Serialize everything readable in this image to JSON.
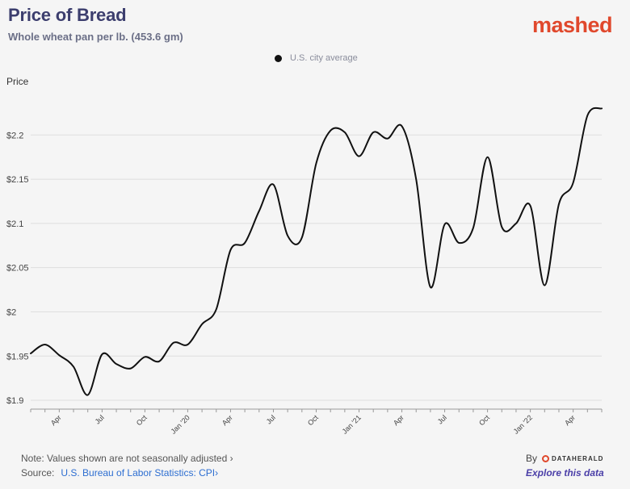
{
  "header": {
    "title": "Price of Bread",
    "subtitle": "Whole wheat pan per lb. (453.6 gm)",
    "brand": "mashed"
  },
  "footer": {
    "note": "Note: Values shown are not seasonally adjusted ›",
    "source_label": "Source:",
    "source_link": "U.S. Bureau of Labor Statistics: CPI›",
    "by_label": "By",
    "by_brand": "DATAHERALD",
    "explore": "Explore this data"
  },
  "chart_data": {
    "type": "line",
    "title": "Price of Bread",
    "subtitle": "Whole wheat pan per lb. (453.6 gm)",
    "ylabel": "Price",
    "xlabel": "",
    "legend": {
      "placement": "top-center",
      "entries": [
        "U.S. city average"
      ]
    },
    "ylim": [
      1.89,
      2.245
    ],
    "yticks": [
      {
        "value": 1.9,
        "label": "$1.9"
      },
      {
        "value": 1.95,
        "label": "$1.95"
      },
      {
        "value": 2.0,
        "label": "$2"
      },
      {
        "value": 2.05,
        "label": "$2.05"
      },
      {
        "value": 2.1,
        "label": "$2.1"
      },
      {
        "value": 2.15,
        "label": "$2.15"
      },
      {
        "value": 2.2,
        "label": "$2.2"
      }
    ],
    "xlim": [
      "2019-02",
      "2022-06"
    ],
    "xticks": [
      {
        "x": "2019-04",
        "label": "Apr"
      },
      {
        "x": "2019-07",
        "label": "Jul"
      },
      {
        "x": "2019-10",
        "label": "Oct"
      },
      {
        "x": "2020-01",
        "label": "Jan '20"
      },
      {
        "x": "2020-04",
        "label": "Apr"
      },
      {
        "x": "2020-07",
        "label": "Jul"
      },
      {
        "x": "2020-10",
        "label": "Oct"
      },
      {
        "x": "2021-01",
        "label": "Jan '21"
      },
      {
        "x": "2021-04",
        "label": "Apr"
      },
      {
        "x": "2021-07",
        "label": "Jul"
      },
      {
        "x": "2021-10",
        "label": "Oct"
      },
      {
        "x": "2022-01",
        "label": "Jan '22"
      },
      {
        "x": "2022-04",
        "label": "Apr"
      }
    ],
    "grid": {
      "y": true,
      "x": false
    },
    "series": [
      {
        "name": "U.S. city average",
        "color": "#111111",
        "x": [
          "2019-02",
          "2019-03",
          "2019-04",
          "2019-05",
          "2019-06",
          "2019-07",
          "2019-08",
          "2019-09",
          "2019-10",
          "2019-11",
          "2019-12",
          "2020-01",
          "2020-02",
          "2020-03",
          "2020-04",
          "2020-05",
          "2020-06",
          "2020-07",
          "2020-08",
          "2020-09",
          "2020-10",
          "2020-11",
          "2020-12",
          "2021-01",
          "2021-02",
          "2021-03",
          "2021-04",
          "2021-05",
          "2021-06",
          "2021-07",
          "2021-08",
          "2021-09",
          "2021-10",
          "2021-11",
          "2021-12",
          "2022-01",
          "2022-02",
          "2022-03",
          "2022-04",
          "2022-05",
          "2022-06"
        ],
        "values": [
          1.953,
          1.963,
          1.951,
          1.938,
          1.906,
          1.952,
          1.941,
          1.936,
          1.949,
          1.944,
          1.965,
          1.963,
          1.986,
          2.003,
          2.07,
          2.078,
          2.114,
          2.144,
          2.086,
          2.084,
          2.168,
          2.205,
          2.203,
          2.176,
          2.203,
          2.196,
          2.21,
          2.15,
          2.028,
          2.099,
          2.078,
          2.095,
          2.175,
          2.096,
          2.1,
          2.12,
          2.03,
          2.122,
          2.146,
          2.222,
          2.23
        ]
      }
    ]
  }
}
